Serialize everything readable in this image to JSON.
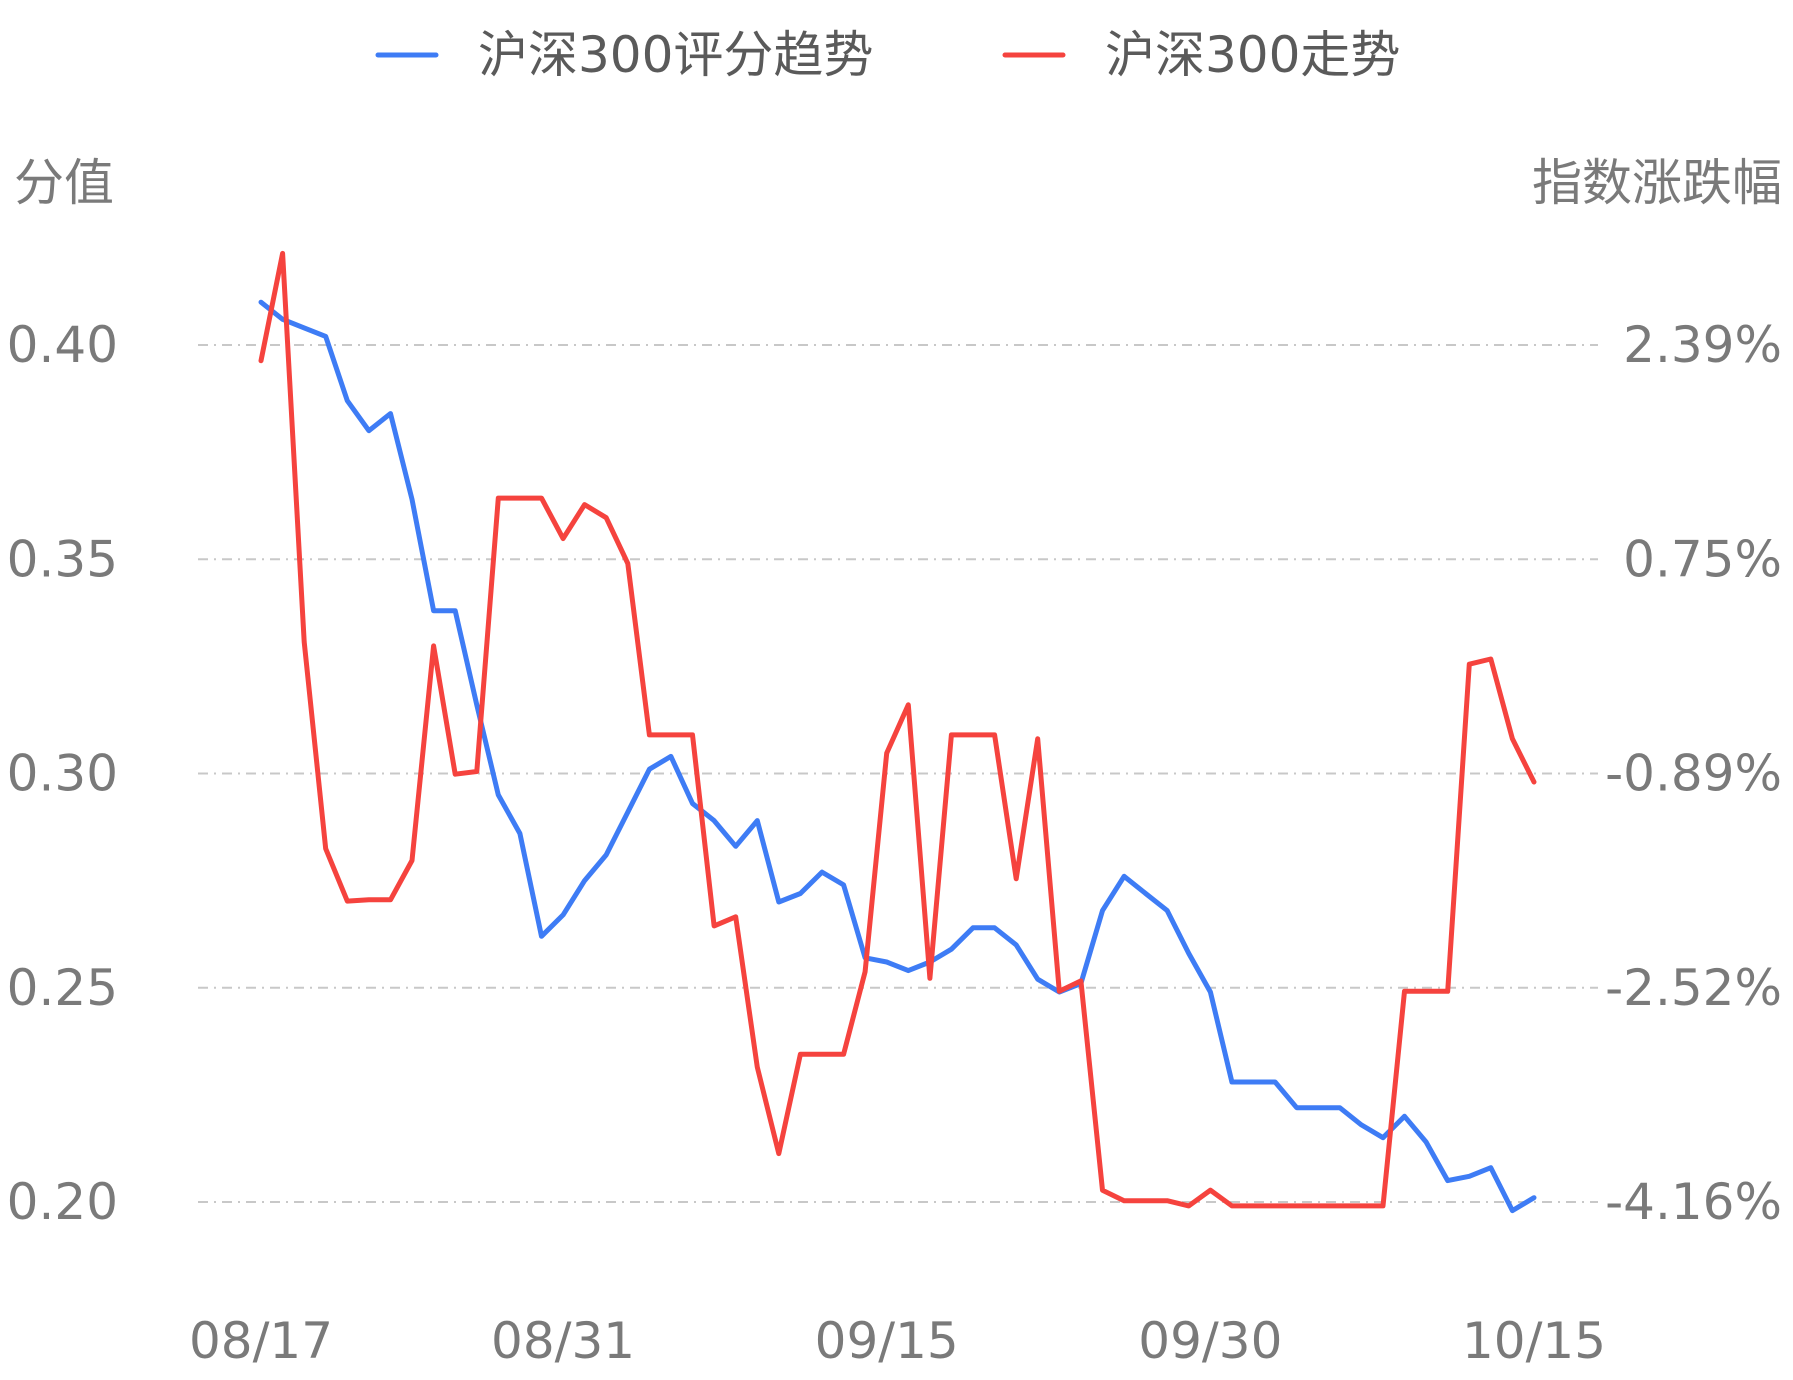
{
  "chart_data": {
    "type": "line",
    "legend_position": "top-center",
    "grid": true,
    "y_left_label": "分值",
    "y_right_label": "指数涨跌幅",
    "y_left_ticks": [
      "0.40",
      "0.35",
      "0.30",
      "0.25",
      "0.20"
    ],
    "y_right_ticks": [
      "2.39%",
      "0.75%",
      "-0.89%",
      "-2.52%",
      "-4.16%"
    ],
    "y_left_range": [
      0.2,
      0.4
    ],
    "y_right_range": [
      -4.16,
      2.39
    ],
    "x_ticks": [
      {
        "index": 0,
        "label": "08/17"
      },
      {
        "index": 14,
        "label": "08/31"
      },
      {
        "index": 29,
        "label": "09/15"
      },
      {
        "index": 44,
        "label": "09/30"
      },
      {
        "index": 59,
        "label": "10/15"
      }
    ],
    "series": [
      {
        "name": "沪深300评分趋势",
        "color": "#3e7cf5",
        "axis": "left",
        "values": [
          {
            "i": 0,
            "v": 0.41
          },
          {
            "i": 1,
            "v": 0.406
          },
          {
            "i": 2,
            "v": 0.404
          },
          {
            "i": 3,
            "v": 0.402
          },
          {
            "i": 4,
            "v": 0.387
          },
          {
            "i": 5,
            "v": 0.38
          },
          {
            "i": 6,
            "v": 0.384
          },
          {
            "i": 7,
            "v": 0.364
          },
          {
            "i": 8,
            "v": 0.338
          },
          {
            "i": 9,
            "v": 0.338
          },
          {
            "i": 10,
            "v": 0.316
          },
          {
            "i": 11,
            "v": 0.295
          },
          {
            "i": 12,
            "v": 0.286
          },
          {
            "i": 13,
            "v": 0.262
          },
          {
            "i": 14,
            "v": 0.267
          },
          {
            "i": 15,
            "v": 0.275
          },
          {
            "i": 16,
            "v": 0.281
          },
          {
            "i": 17,
            "v": 0.291
          },
          {
            "i": 18,
            "v": 0.301
          },
          {
            "i": 19,
            "v": 0.304
          },
          {
            "i": 20,
            "v": 0.293
          },
          {
            "i": 21,
            "v": 0.289
          },
          {
            "i": 22,
            "v": 0.283
          },
          {
            "i": 23,
            "v": 0.289
          },
          {
            "i": 24,
            "v": 0.27
          },
          {
            "i": 25,
            "v": 0.272
          },
          {
            "i": 26,
            "v": 0.277
          },
          {
            "i": 27,
            "v": 0.274
          },
          {
            "i": 28,
            "v": 0.257
          },
          {
            "i": 29,
            "v": 0.256
          },
          {
            "i": 30,
            "v": 0.254
          },
          {
            "i": 31,
            "v": 0.256
          },
          {
            "i": 32,
            "v": 0.259
          },
          {
            "i": 33,
            "v": 0.264
          },
          {
            "i": 34,
            "v": 0.264
          },
          {
            "i": 35,
            "v": 0.26
          },
          {
            "i": 36,
            "v": 0.252
          },
          {
            "i": 37,
            "v": 0.249
          },
          {
            "i": 38,
            "v": 0.251
          },
          {
            "i": 39,
            "v": 0.268
          },
          {
            "i": 40,
            "v": 0.276
          },
          {
            "i": 41,
            "v": 0.272
          },
          {
            "i": 42,
            "v": 0.268
          },
          {
            "i": 43,
            "v": 0.258
          },
          {
            "i": 44,
            "v": 0.249
          },
          {
            "i": 45,
            "v": 0.228
          },
          {
            "i": 46,
            "v": 0.228
          },
          {
            "i": 47,
            "v": 0.228
          },
          {
            "i": 48,
            "v": 0.222
          },
          {
            "i": 49,
            "v": 0.222
          },
          {
            "i": 50,
            "v": 0.222
          },
          {
            "i": 51,
            "v": 0.218
          },
          {
            "i": 52,
            "v": 0.215
          },
          {
            "i": 53,
            "v": 0.22
          },
          {
            "i": 54,
            "v": 0.214
          },
          {
            "i": 55,
            "v": 0.205
          },
          {
            "i": 56,
            "v": 0.206
          },
          {
            "i": 57,
            "v": 0.208
          },
          {
            "i": 58,
            "v": 0.198
          },
          {
            "i": 59,
            "v": 0.201
          }
        ]
      },
      {
        "name": "沪深300走势",
        "color": "#f5433e",
        "axis": "right",
        "values": [
          {
            "i": 0,
            "v": 2.27
          },
          {
            "i": 1,
            "v": 3.09
          },
          {
            "i": 2,
            "v": 0.12
          },
          {
            "i": 3,
            "v": -1.46
          },
          {
            "i": 4,
            "v": -1.86
          },
          {
            "i": 5,
            "v": -1.85
          },
          {
            "i": 6,
            "v": -1.85
          },
          {
            "i": 7,
            "v": -1.55
          },
          {
            "i": 8,
            "v": 0.09
          },
          {
            "i": 9,
            "v": -0.89
          },
          {
            "i": 10,
            "v": -0.87
          },
          {
            "i": 11,
            "v": 1.22
          },
          {
            "i": 12,
            "v": 1.22
          },
          {
            "i": 13,
            "v": 1.22
          },
          {
            "i": 14,
            "v": 0.91
          },
          {
            "i": 15,
            "v": 1.17
          },
          {
            "i": 16,
            "v": 1.07
          },
          {
            "i": 17,
            "v": 0.72
          },
          {
            "i": 18,
            "v": -0.59
          },
          {
            "i": 19,
            "v": -0.59
          },
          {
            "i": 20,
            "v": -0.59
          },
          {
            "i": 21,
            "v": -2.05
          },
          {
            "i": 22,
            "v": -1.98
          },
          {
            "i": 23,
            "v": -3.13
          },
          {
            "i": 24,
            "v": -3.79
          },
          {
            "i": 25,
            "v": -3.03
          },
          {
            "i": 26,
            "v": -3.03
          },
          {
            "i": 27,
            "v": -3.03
          },
          {
            "i": 28,
            "v": -2.4
          },
          {
            "i": 29,
            "v": -0.73
          },
          {
            "i": 30,
            "v": -0.36
          },
          {
            "i": 31,
            "v": -2.45
          },
          {
            "i": 32,
            "v": -0.59
          },
          {
            "i": 33,
            "v": -0.59
          },
          {
            "i": 34,
            "v": -0.59
          },
          {
            "i": 35,
            "v": -1.69
          },
          {
            "i": 36,
            "v": -0.62
          },
          {
            "i": 37,
            "v": -2.55
          },
          {
            "i": 38,
            "v": -2.47
          },
          {
            "i": 39,
            "v": -4.07
          },
          {
            "i": 40,
            "v": -4.15
          },
          {
            "i": 41,
            "v": -4.15
          },
          {
            "i": 42,
            "v": -4.15
          },
          {
            "i": 43,
            "v": -4.19
          },
          {
            "i": 44,
            "v": -4.07
          },
          {
            "i": 45,
            "v": -4.19
          },
          {
            "i": 46,
            "v": -4.19
          },
          {
            "i": 47,
            "v": -4.19
          },
          {
            "i": 48,
            "v": -4.19
          },
          {
            "i": 49,
            "v": -4.19
          },
          {
            "i": 50,
            "v": -4.19
          },
          {
            "i": 51,
            "v": -4.19
          },
          {
            "i": 52,
            "v": -4.19
          },
          {
            "i": 53,
            "v": -2.55
          },
          {
            "i": 54,
            "v": -2.55
          },
          {
            "i": 55,
            "v": -2.55
          },
          {
            "i": 56,
            "v": -0.05
          },
          {
            "i": 57,
            "v": -0.01
          },
          {
            "i": 58,
            "v": -0.62
          },
          {
            "i": 59,
            "v": -0.95
          }
        ]
      }
    ]
  }
}
